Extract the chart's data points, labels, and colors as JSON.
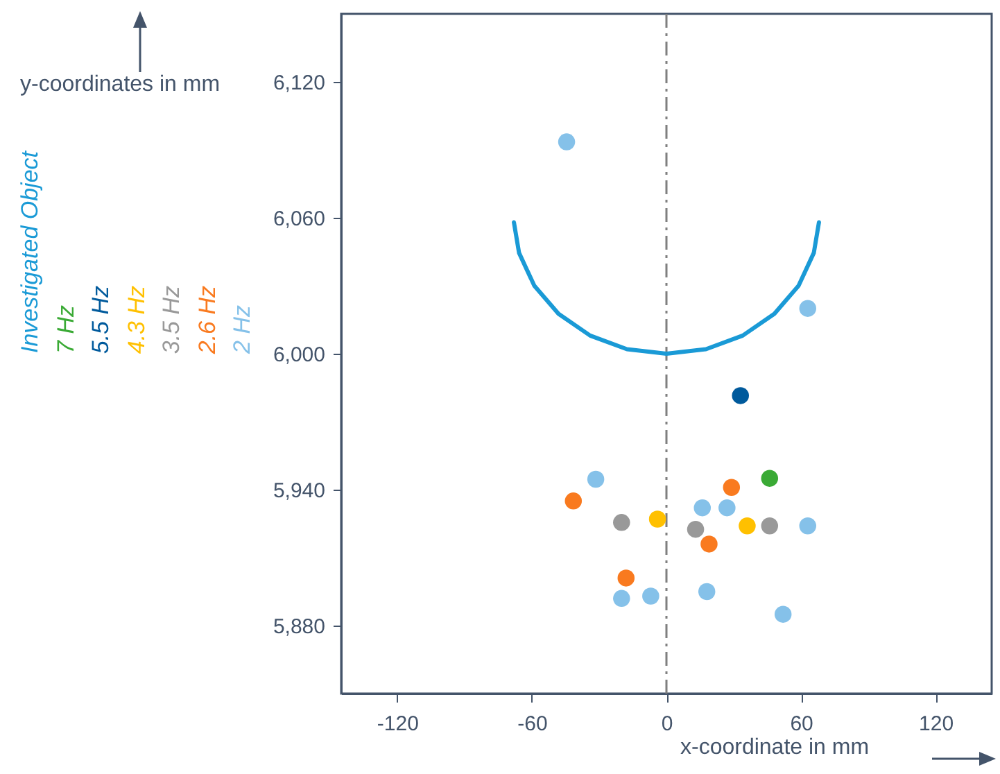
{
  "chart_data": {
    "type": "scatter",
    "xlabel": "x-coordinate in mm",
    "ylabel": "y-coordinates in mm",
    "xlim": [
      -145,
      145
    ],
    "ylim": [
      5850,
      6150
    ],
    "xticks": [
      -120,
      -60,
      0,
      60,
      120
    ],
    "yticks": [
      {
        "value": 5880,
        "label": "5,880"
      },
      {
        "value": 5940,
        "label": "5,940"
      },
      {
        "value": 6000,
        "label": "6,000"
      },
      {
        "value": 6060,
        "label": "6,060"
      },
      {
        "value": 6120,
        "label": "6,120"
      }
    ],
    "grid": false,
    "ref_lines": [
      {
        "axis": "x",
        "value": 0,
        "color": "#7f7f7f",
        "line_style": "dashed"
      }
    ],
    "series": [
      {
        "name": "Investigated Object",
        "type": "line",
        "marker": "none",
        "color": "#1a9ad6",
        "x": [
          -68,
          -65.7,
          -58.9,
          -48.1,
          -34,
          -17.6,
          0,
          17.6,
          34,
          48.1,
          58.9,
          65.7,
          68
        ],
        "values": [
          6058,
          6044.5,
          6030,
          6017.6,
          6008,
          6002,
          6000,
          6002,
          6008,
          6017.6,
          6030,
          6044.5,
          6058
        ]
      },
      {
        "name": "7 Hz",
        "marker": "circle",
        "color": "#3aaa35",
        "x": [
          46
        ],
        "values": [
          5945
        ]
      },
      {
        "name": "5.5 Hz",
        "marker": "circle",
        "color": "#005a9c",
        "x": [
          33
        ],
        "values": [
          5981.5
        ]
      },
      {
        "name": "4.3 Hz",
        "marker": "circle",
        "color": "#ffc000",
        "x": [
          -4,
          36
        ],
        "values": [
          5927,
          5924
        ]
      },
      {
        "name": "3.5 Hz",
        "marker": "circle",
        "color": "#999999",
        "x": [
          -20,
          13,
          46
        ],
        "values": [
          5925.5,
          5922.5,
          5924
        ]
      },
      {
        "name": "2.6 Hz",
        "marker": "circle",
        "color": "#f97a1f",
        "x": [
          -41.5,
          29,
          19,
          -18
        ],
        "values": [
          5935,
          5941,
          5916,
          5901
        ]
      },
      {
        "name": "2 Hz",
        "marker": "circle",
        "color": "#85c1e9",
        "x": [
          -44.5,
          63,
          -31.5,
          16,
          27,
          63,
          -20,
          -7,
          18,
          52
        ],
        "values": [
          6093.5,
          6020,
          5944.6,
          5932,
          5932,
          5924,
          5892,
          5893,
          5895,
          5885
        ]
      }
    ]
  }
}
